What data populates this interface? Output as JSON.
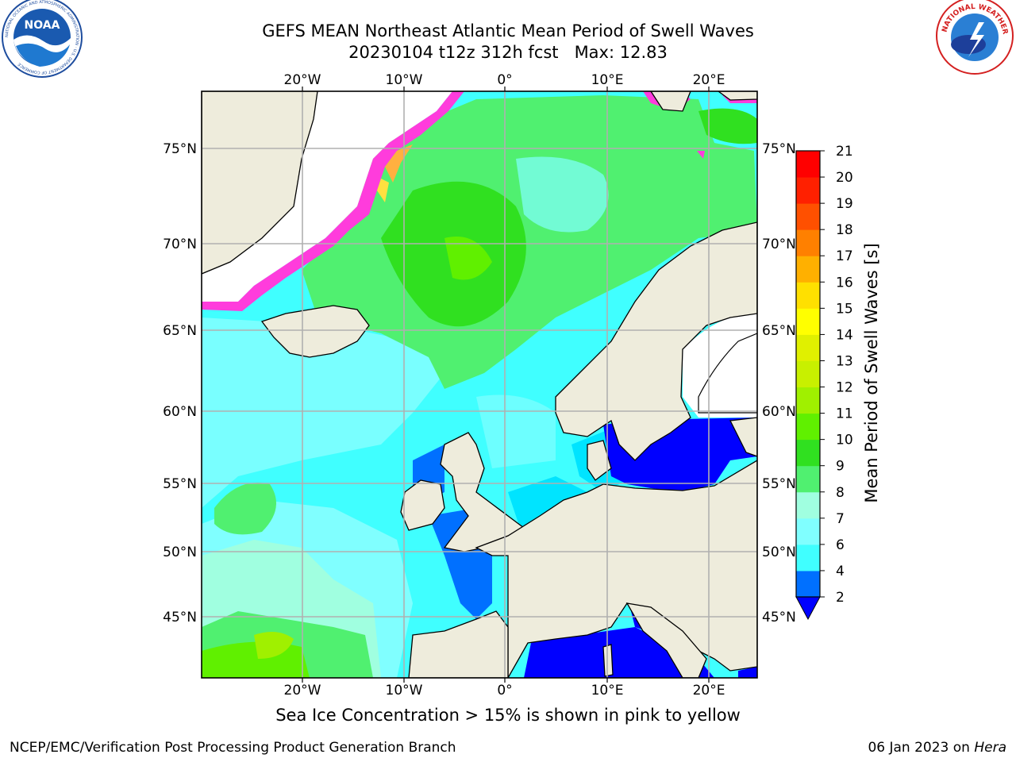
{
  "header": {
    "title_line1": "GEFS MEAN Northeast Atlantic Mean Period of Swell Waves",
    "title_line2": "20230104 t12z 312h fcst   Max: 12.83"
  },
  "logos": {
    "left": {
      "name": "NOAA",
      "ring_text": "NATIONAL OCEANIC AND ATMOSPHERIC ADMINISTRATION · U.S. DEPARTMENT OF COMMERCE"
    },
    "right": {
      "ring_text": "NATIONAL WEATHER SERVICE"
    }
  },
  "map": {
    "lon_labels": [
      "20°W",
      "10°W",
      "0°",
      "10°E",
      "20°E"
    ],
    "lat_labels": [
      "75°N",
      "70°N",
      "65°N",
      "60°N",
      "55°N",
      "50°N",
      "45°N"
    ],
    "colors": {
      "land": "#eeecdc",
      "ice_free": "#ffffff",
      "grid": "#b0b0b0",
      "ice_pink": "#ff3cdc",
      "ice_orange": "#ffb040",
      "ice_yellow": "#ffe040"
    }
  },
  "colorbar": {
    "label": "Mean Period of Swell Waves [s]",
    "ticks": [
      "2",
      "4",
      "6",
      "7",
      "8",
      "9",
      "10",
      "11",
      "12",
      "13",
      "14",
      "15",
      "16",
      "17",
      "18",
      "19",
      "20",
      "21"
    ],
    "colors": [
      "#0070ff",
      "#00e4ff",
      "#40ffff",
      "#80ffff",
      "#a0ffe0",
      "#50f070",
      "#30e020",
      "#60f000",
      "#a0f000",
      "#c8f000",
      "#e0f000",
      "#ffff00",
      "#ffe000",
      "#ffb000",
      "#ff8000",
      "#ff5000",
      "#ff2000",
      "#ff0000"
    ],
    "under_color": "#0000ff"
  },
  "caption": "Sea Ice Concentration > 15% is shown in pink to yellow",
  "footer": {
    "left": "NCEP/EMC/Verification Post Processing Product Generation Branch",
    "right_date": "06 Jan 2023 on",
    "right_host": "Hera"
  }
}
